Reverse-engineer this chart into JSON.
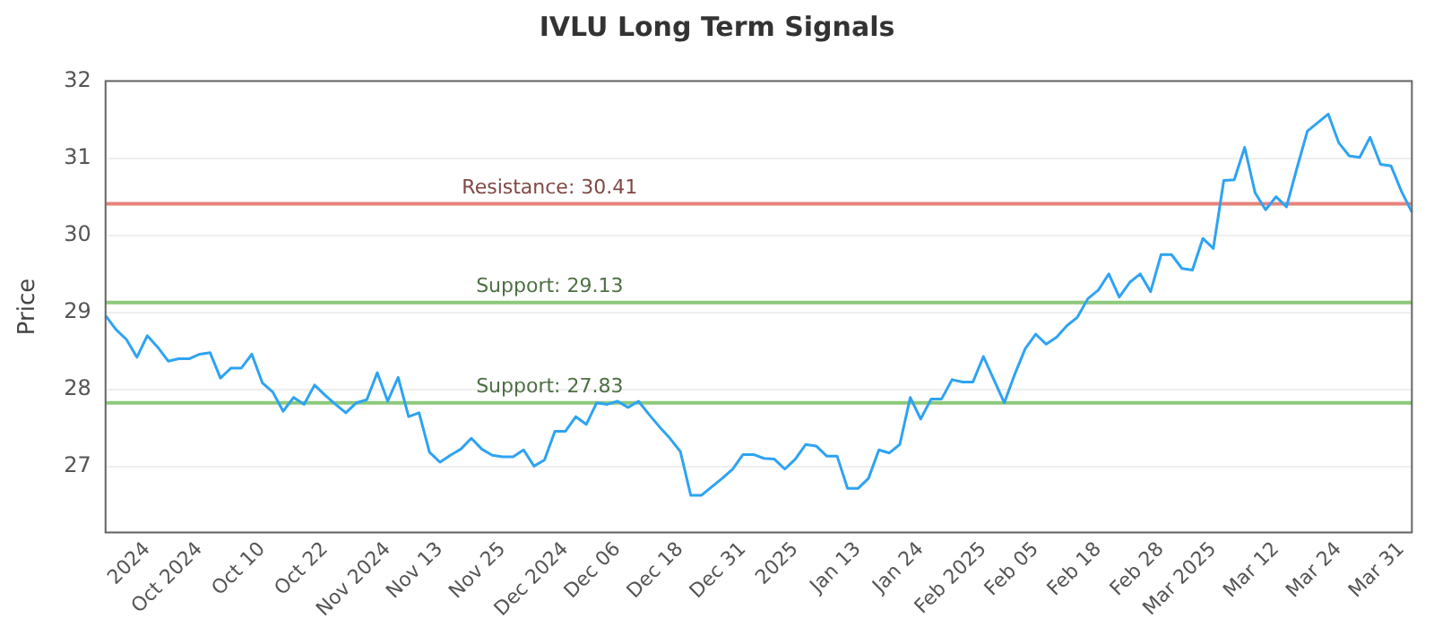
{
  "chart_data": {
    "type": "line",
    "title": "IVLU Long Term Signals",
    "ylabel": "Price",
    "categories": [
      null,
      null,
      null,
      null,
      "2024",
      null,
      null,
      null,
      null,
      "Oct 2024",
      null,
      null,
      null,
      null,
      null,
      "Oct 10",
      null,
      null,
      null,
      null,
      null,
      "Oct 22",
      null,
      null,
      null,
      null,
      null,
      "Nov 2024",
      null,
      null,
      null,
      null,
      "Nov 13",
      null,
      null,
      null,
      null,
      null,
      "Nov 25",
      null,
      null,
      null,
      null,
      null,
      "Dec 2024",
      null,
      null,
      null,
      null,
      "Dec 06",
      null,
      null,
      null,
      null,
      null,
      "Dec 18",
      null,
      null,
      null,
      null,
      null,
      "Dec 31",
      null,
      null,
      null,
      null,
      "2025",
      null,
      null,
      null,
      null,
      null,
      "Jan 13",
      null,
      null,
      null,
      null,
      null,
      "Jan 24",
      null,
      null,
      null,
      null,
      null,
      "Feb 2025",
      null,
      null,
      null,
      null,
      "Feb 05",
      null,
      null,
      null,
      null,
      null,
      "Feb 18",
      null,
      null,
      null,
      null,
      null,
      "Feb 28",
      null,
      null,
      null,
      null,
      "Mar 2025",
      null,
      null,
      null,
      null,
      null,
      "Mar 12",
      null,
      null,
      null,
      null,
      null,
      "Mar 24",
      null,
      null,
      null,
      null,
      null,
      "Mar 31",
      null
    ],
    "series": [
      {
        "color": "#2ea3f2",
        "values": [
          28.96,
          28.78,
          28.65,
          28.42,
          28.7,
          28.55,
          28.37,
          28.4,
          28.4,
          28.46,
          28.48,
          28.15,
          28.28,
          28.28,
          28.46,
          28.09,
          27.97,
          27.72,
          27.9,
          27.81,
          28.06,
          27.93,
          27.81,
          27.7,
          27.83,
          27.87,
          28.22,
          27.85,
          28.16,
          27.65,
          27.7,
          27.19,
          27.06,
          27.15,
          27.23,
          27.37,
          27.23,
          27.15,
          27.13,
          27.13,
          27.22,
          27.01,
          27.09,
          27.46,
          27.46,
          27.65,
          27.55,
          27.83,
          27.81,
          27.85,
          27.77,
          27.85,
          27.68,
          27.52,
          27.37,
          27.2,
          26.63,
          26.63,
          26.74,
          26.85,
          26.97,
          27.16,
          27.16,
          27.11,
          27.1,
          26.97,
          27.1,
          27.29,
          27.27,
          27.14,
          27.14,
          26.72,
          26.72,
          26.85,
          27.22,
          27.18,
          27.29,
          27.9,
          27.62,
          27.88,
          27.88,
          28.13,
          28.1,
          28.1,
          28.43,
          28.13,
          27.83,
          28.2,
          28.53,
          28.72,
          28.59,
          28.68,
          28.83,
          28.94,
          29.18,
          29.29,
          29.5,
          29.2,
          29.39,
          29.5,
          29.27,
          29.75,
          29.75,
          29.57,
          29.55,
          29.96,
          29.83,
          30.71,
          30.72,
          31.14,
          30.55,
          30.33,
          30.5,
          30.37,
          30.87,
          31.35,
          31.46,
          31.57,
          31.2,
          31.03,
          31.01,
          31.27,
          30.92,
          30.9,
          30.57,
          30.3
        ]
      }
    ],
    "ylim": [
      26.15,
      32
    ],
    "yticks": [
      27,
      28,
      29,
      30,
      31,
      32
    ],
    "grid": "y",
    "legend": false,
    "marker": "none",
    "line_style": "solid",
    "ref_lines": [
      {
        "axis": "y",
        "value": 30.41,
        "label": "Resistance: 30.41",
        "color": "#e8837b"
      },
      {
        "axis": "y",
        "value": 29.13,
        "label": "Support: 29.13",
        "color": "#8cc97a"
      },
      {
        "axis": "y",
        "value": 27.83,
        "label": "Support: 27.83",
        "color": "#8cc97a"
      }
    ]
  }
}
